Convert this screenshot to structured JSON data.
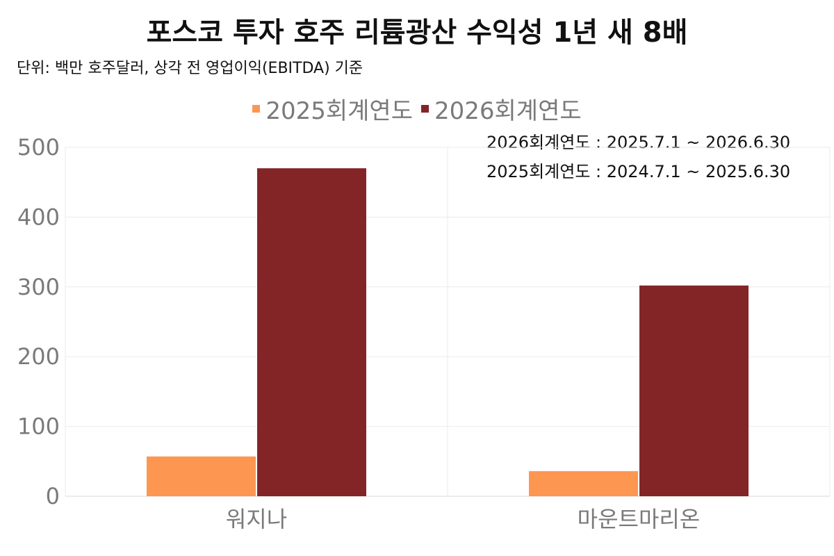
{
  "chart_data": {
    "type": "bar",
    "title": "포스코 투자 호주 리튬광산 수익성 1년 새 8배",
    "subtitle": "단위: 백만 호주달러, 상각 전 영업이익(EBITDA) 기준",
    "categories": [
      "워지나",
      "마운트마리온"
    ],
    "series": [
      {
        "name": "2025회계연도",
        "color": "#FD9650",
        "values": [
          57,
          36
        ]
      },
      {
        "name": "2026회계연도",
        "color": "#832527",
        "values": [
          470,
          302
        ]
      }
    ],
    "ylim": [
      0,
      500
    ],
    "yticks": [
      0,
      100,
      200,
      300,
      400,
      500
    ],
    "grid": true,
    "legend_position": "top-center",
    "annotations": [
      "2026회계연도 : 2025.7.1 ~ 2026.6.30",
      "2025회계연도 : 2024.7.1 ~ 2025.6.30"
    ]
  }
}
